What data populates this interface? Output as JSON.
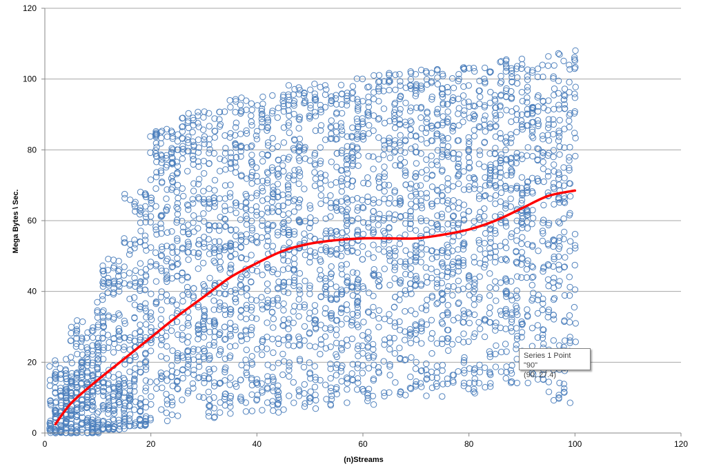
{
  "chart_data": {
    "type": "scatter",
    "title": "",
    "xlabel": "(n)Streams",
    "ylabel": "Mega Bytes \\ Sec.",
    "xlim": [
      0,
      120
    ],
    "ylim": [
      0,
      120
    ],
    "x_ticks": [
      0,
      20,
      40,
      60,
      80,
      100,
      120
    ],
    "y_ticks": [
      0,
      20,
      40,
      60,
      80,
      100,
      120
    ],
    "grid": "horizontal",
    "legend": "none",
    "colors": {
      "scatter": "#4f81bd",
      "trend": "#ff0000",
      "grid": "#a6a6a6"
    },
    "series": [
      {
        "type": "scatter",
        "description_bins": [
          {
            "x": [
              1,
              5
            ],
            "y_min": 0,
            "y_max": 21
          },
          {
            "x": [
              5,
              10
            ],
            "y_min": 0,
            "y_max": 32
          },
          {
            "x": [
              10,
              15
            ],
            "y_min": 1,
            "y_max": 50
          },
          {
            "x": [
              15,
              20
            ],
            "y_min": 2,
            "y_max": 69
          },
          {
            "x": [
              20,
              25
            ],
            "y_min": 3,
            "y_max": 87
          },
          {
            "x": [
              25,
              35
            ],
            "y_min": 4,
            "y_max": 91
          },
          {
            "x": [
              35,
              45
            ],
            "y_min": 5,
            "y_max": 96
          },
          {
            "x": [
              45,
              55
            ],
            "y_min": 6,
            "y_max": 99
          },
          {
            "x": [
              55,
              65
            ],
            "y_min": 8,
            "y_max": 102
          },
          {
            "x": [
              65,
              75
            ],
            "y_min": 10,
            "y_max": 103
          },
          {
            "x": [
              75,
              85
            ],
            "y_min": 11,
            "y_max": 104
          },
          {
            "x": [
              85,
              95
            ],
            "y_min": 14,
            "y_max": 106
          },
          {
            "x": [
              95,
              100
            ],
            "y_min": 8,
            "y_max": 109
          }
        ]
      },
      {
        "type": "line",
        "smooth": true,
        "x": [
          2,
          5,
          10,
          15,
          20,
          25,
          30,
          35,
          40,
          45,
          50,
          55,
          60,
          65,
          70,
          75,
          80,
          85,
          90,
          95,
          100
        ],
        "y": [
          2.5,
          8.5,
          15,
          21,
          27,
          33,
          38.5,
          44,
          48,
          51.5,
          53.5,
          54.5,
          55,
          55,
          55,
          56,
          57.5,
          60,
          63.5,
          67,
          68.5
        ]
      }
    ],
    "tooltip": {
      "line1": "Series 1 Point \"90\"",
      "line2": "(90, 27.4)"
    }
  }
}
